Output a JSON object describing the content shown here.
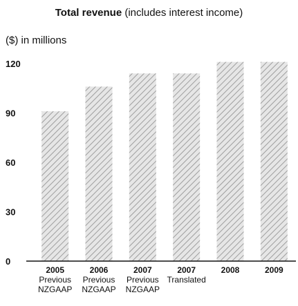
{
  "chart_data": {
    "type": "bar",
    "title_bold": "Total revenue",
    "title_rest": "(includes interest income)",
    "unit_label": "($) in millions",
    "ylim": [
      0,
      120
    ],
    "yticks": [
      "0",
      "30",
      "60",
      "90",
      "120"
    ],
    "grid": false,
    "categories": [
      {
        "year": "2005",
        "line2": "Previous",
        "line3": "NZGAAP"
      },
      {
        "year": "2006",
        "line2": "Previous",
        "line3": "NZGAAP"
      },
      {
        "year": "2007",
        "line2": "Previous",
        "line3": "NZGAAP"
      },
      {
        "year": "2007",
        "line2": "Translated",
        "line3": ""
      },
      {
        "year": "2008",
        "line2": "",
        "line3": ""
      },
      {
        "year": "2009",
        "line2": "",
        "line3": ""
      }
    ],
    "values": [
      91,
      106,
      114,
      114,
      121,
      121
    ],
    "colors": {
      "bar_fill": "#e6e6e6",
      "bar_hatch": "#9e9e9e",
      "axis": "#111111",
      "text": "#111111"
    }
  }
}
